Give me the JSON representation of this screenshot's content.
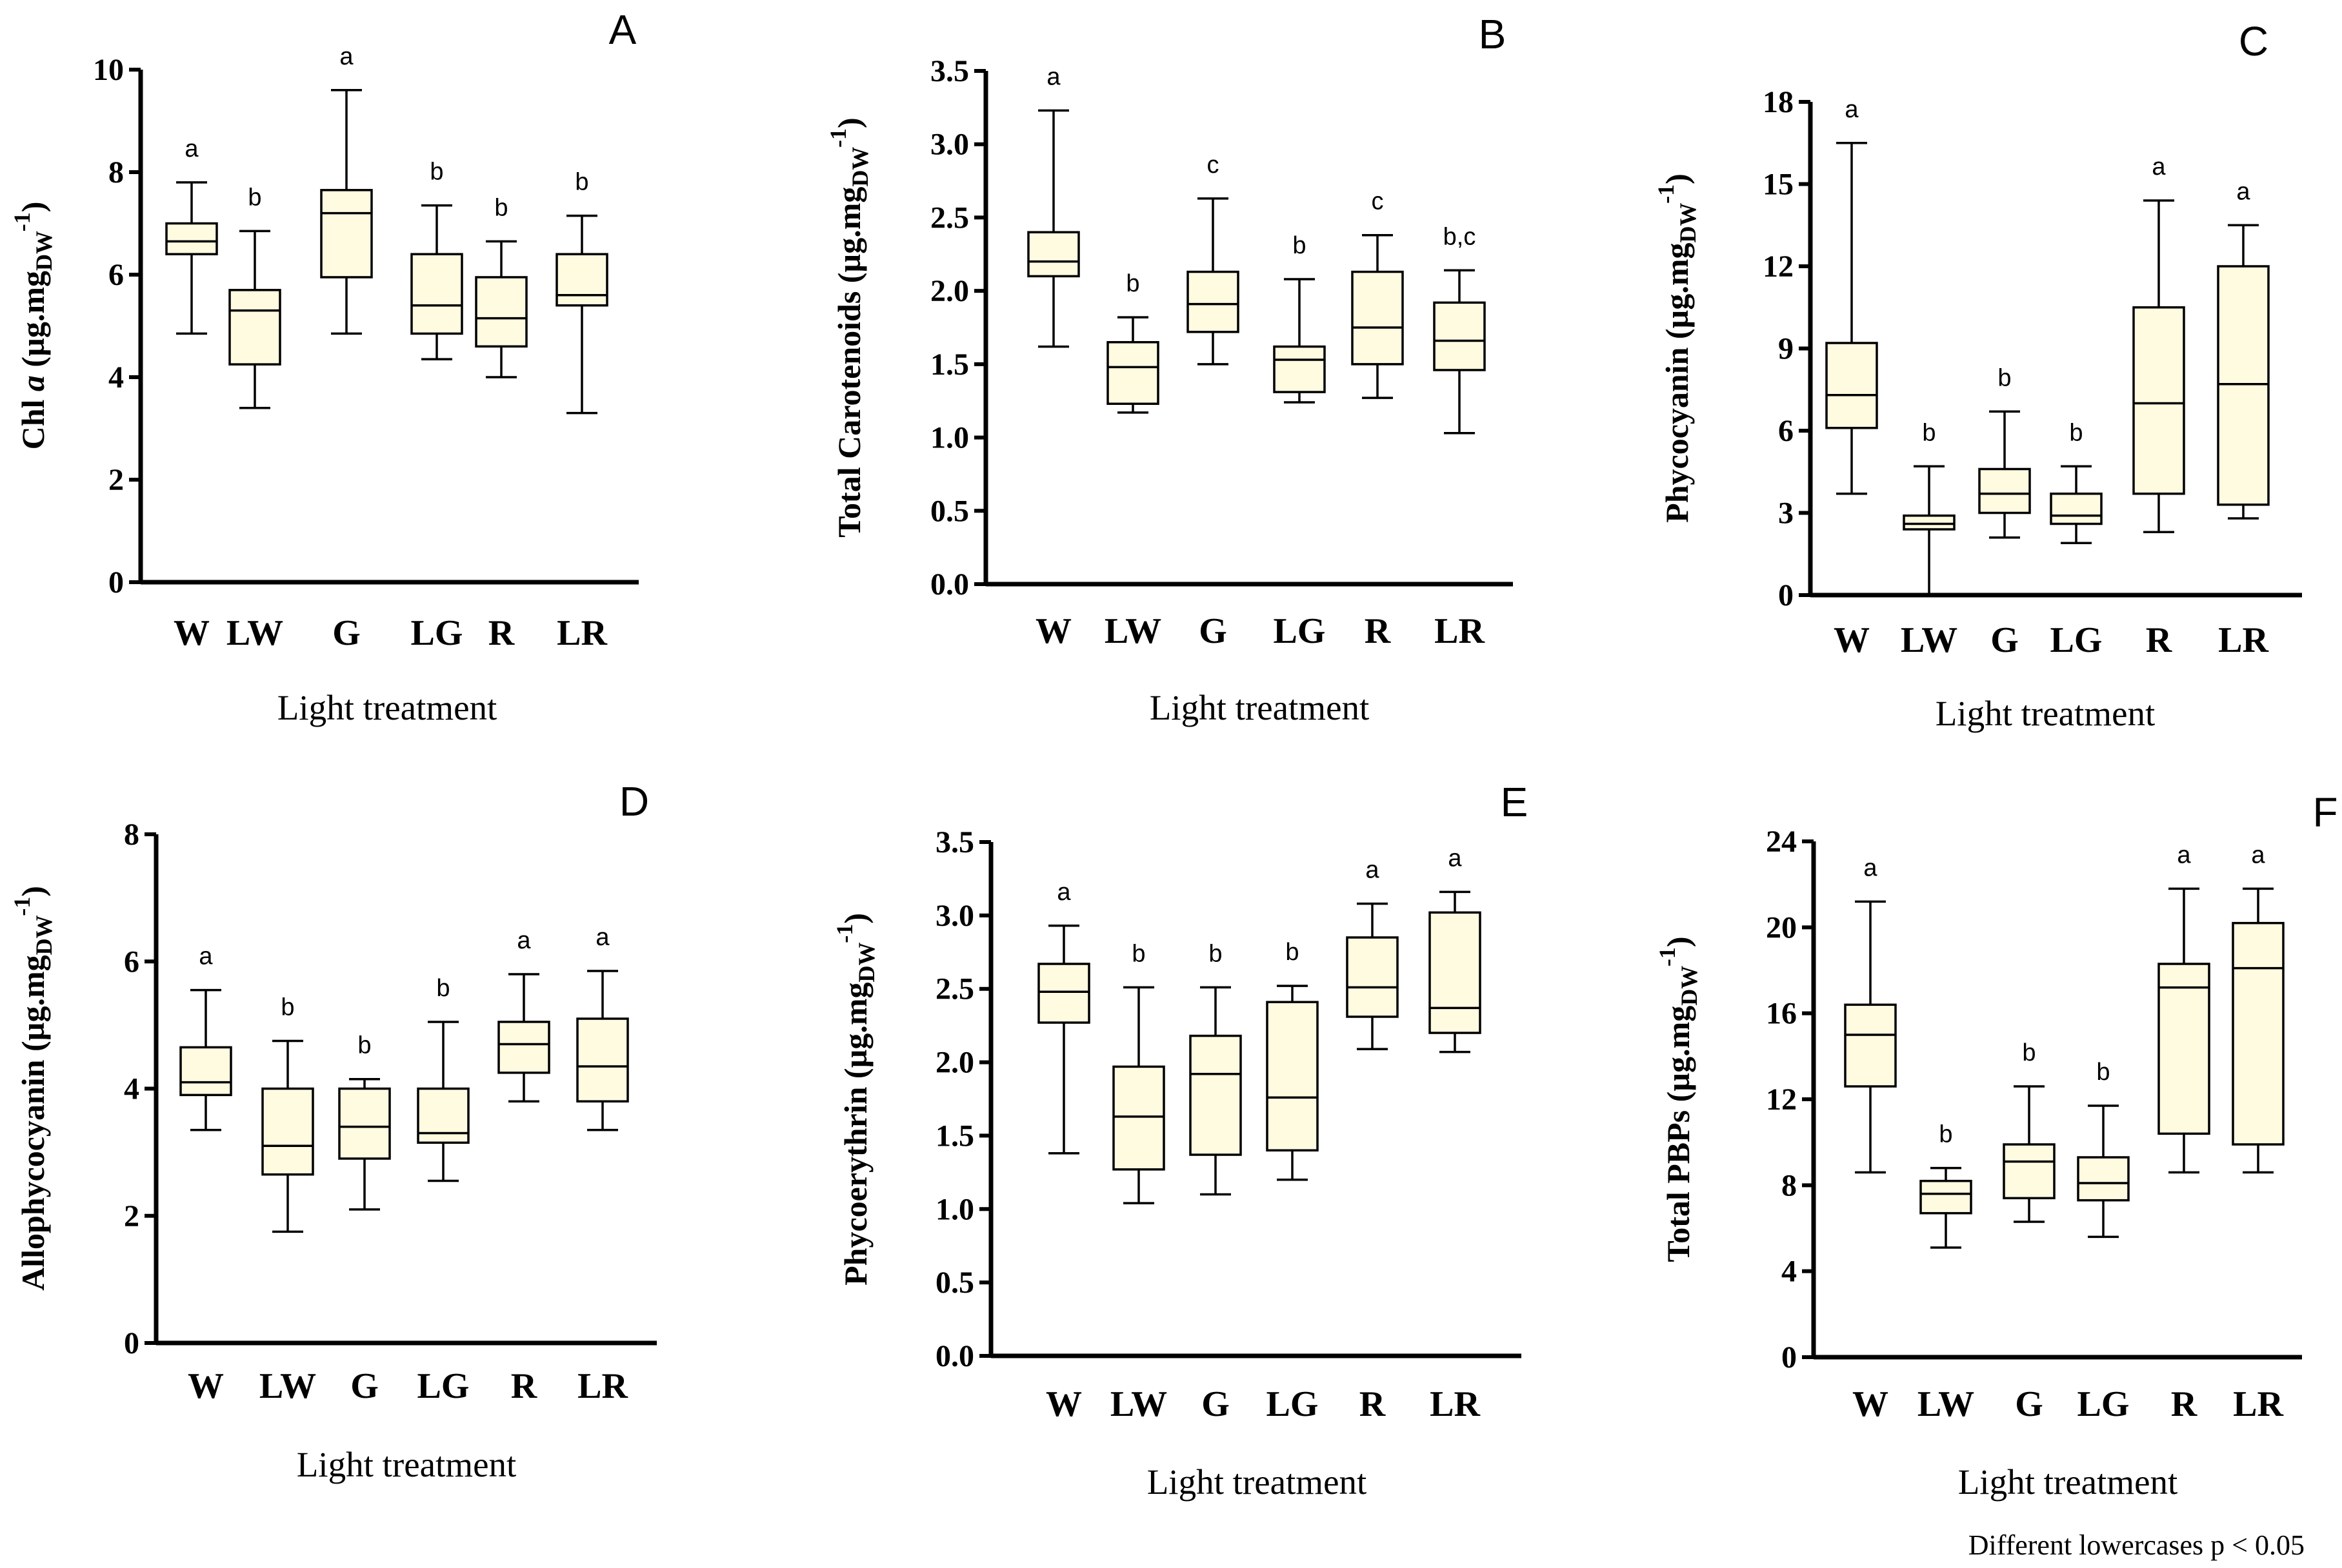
{
  "chart_data": [
    {
      "type": "box",
      "panel": "A",
      "ylabel_main": "Chl ",
      "ylabel_italic": "a",
      "ylabel_unit": " (µg.mg",
      "ylabel_sub": "DW",
      "ylabel_sup": "-1",
      "ylabel_close": ")",
      "xlabel": "Light treatment",
      "ylim": [
        0,
        10
      ],
      "yticks": [
        "0",
        "2",
        "4",
        "6",
        "8",
        "10"
      ],
      "tick_values": [
        0,
        2,
        4,
        6,
        8,
        10
      ],
      "categories": [
        "W",
        "LW",
        "G",
        "LG",
        "R",
        "LR"
      ],
      "boxes": [
        {
          "min": 4.85,
          "q1": 6.4,
          "median": 6.65,
          "q3": 7.0,
          "max": 7.8,
          "letter": "a"
        },
        {
          "min": 3.4,
          "q1": 4.25,
          "median": 5.3,
          "q3": 5.7,
          "max": 6.85,
          "letter": "b"
        },
        {
          "min": 4.85,
          "q1": 5.95,
          "median": 7.2,
          "q3": 7.65,
          "max": 9.6,
          "letter": "a"
        },
        {
          "min": 4.35,
          "q1": 4.85,
          "median": 5.4,
          "q3": 6.4,
          "max": 7.35,
          "letter": "b"
        },
        {
          "min": 4.0,
          "q1": 4.6,
          "median": 5.15,
          "q3": 5.95,
          "max": 6.65,
          "letter": "b"
        },
        {
          "min": 3.3,
          "q1": 5.4,
          "median": 5.6,
          "q3": 6.4,
          "max": 7.15,
          "letter": "b"
        }
      ]
    },
    {
      "type": "box",
      "panel": "B",
      "ylabel_main": "Total Carotenoids",
      "ylabel_italic": "",
      "ylabel_unit": " (µg.mg",
      "ylabel_sub": "DW",
      "ylabel_sup": "-1",
      "ylabel_close": ")",
      "xlabel": "Light treatment",
      "ylim": [
        0,
        3.5
      ],
      "yticks": [
        "0.0",
        "0.5",
        "1.0",
        "1.5",
        "2.0",
        "2.5",
        "3.0",
        "3.5"
      ],
      "tick_values": [
        0,
        0.5,
        1.0,
        1.5,
        2.0,
        2.5,
        3.0,
        3.5
      ],
      "categories": [
        "W",
        "LW",
        "G",
        "LG",
        "R",
        "LR"
      ],
      "boxes": [
        {
          "min": 1.62,
          "q1": 2.1,
          "median": 2.2,
          "q3": 2.4,
          "max": 3.23,
          "letter": "a"
        },
        {
          "min": 1.17,
          "q1": 1.23,
          "median": 1.48,
          "q3": 1.65,
          "max": 1.82,
          "letter": "b"
        },
        {
          "min": 1.5,
          "q1": 1.72,
          "median": 1.91,
          "q3": 2.13,
          "max": 2.63,
          "letter": "c"
        },
        {
          "min": 1.24,
          "q1": 1.31,
          "median": 1.53,
          "q3": 1.62,
          "max": 2.08,
          "letter": "b"
        },
        {
          "min": 1.27,
          "q1": 1.5,
          "median": 1.75,
          "q3": 2.13,
          "max": 2.38,
          "letter": "c"
        },
        {
          "min": 1.03,
          "q1": 1.46,
          "median": 1.66,
          "q3": 1.92,
          "max": 2.14,
          "letter": "b,c"
        }
      ]
    },
    {
      "type": "box",
      "panel": "C",
      "ylabel_main": "Phycocyanin",
      "ylabel_italic": "",
      "ylabel_unit": " (µg.mg",
      "ylabel_sub": "DW",
      "ylabel_sup": "-1",
      "ylabel_close": ")",
      "xlabel": "Light treatment",
      "ylim": [
        0,
        18
      ],
      "yticks": [
        "0",
        "3",
        "6",
        "9",
        "12",
        "15",
        "18"
      ],
      "tick_values": [
        0,
        3,
        6,
        9,
        12,
        15,
        18
      ],
      "categories": [
        "W",
        "LW",
        "G",
        "LG",
        "R",
        "LR"
      ],
      "boxes": [
        {
          "min": 3.7,
          "q1": 6.1,
          "median": 7.3,
          "q3": 9.2,
          "max": 16.5,
          "letter": "a"
        },
        {
          "min": 0.0,
          "q1": 2.4,
          "median": 2.6,
          "q3": 2.9,
          "max": 4.7,
          "letter": "b"
        },
        {
          "min": 2.1,
          "q1": 3.0,
          "median": 3.7,
          "q3": 4.6,
          "max": 6.7,
          "letter": "b"
        },
        {
          "min": 1.9,
          "q1": 2.6,
          "median": 2.9,
          "q3": 3.7,
          "max": 4.7,
          "letter": "b"
        },
        {
          "min": 2.3,
          "q1": 3.7,
          "median": 7.0,
          "q3": 10.5,
          "max": 14.4,
          "letter": "a"
        },
        {
          "min": 2.8,
          "q1": 3.3,
          "median": 7.7,
          "q3": 12.0,
          "max": 13.5,
          "letter": "a"
        }
      ]
    },
    {
      "type": "box",
      "panel": "D",
      "ylabel_main": "Allophycocyanin",
      "ylabel_italic": "",
      "ylabel_unit": " (µg.mg",
      "ylabel_sub": "DW",
      "ylabel_sup": "-1",
      "ylabel_close": ")",
      "xlabel": "Light treatment",
      "ylim": [
        0,
        8
      ],
      "yticks": [
        "0",
        "2",
        "4",
        "6",
        "8"
      ],
      "tick_values": [
        0,
        2,
        4,
        6,
        8
      ],
      "categories": [
        "W",
        "LW",
        "G",
        "LG",
        "R",
        "LR"
      ],
      "boxes": [
        {
          "min": 3.35,
          "q1": 3.9,
          "median": 4.1,
          "q3": 4.65,
          "max": 5.55,
          "letter": "a"
        },
        {
          "min": 1.75,
          "q1": 2.65,
          "median": 3.1,
          "q3": 4.0,
          "max": 4.75,
          "letter": "b"
        },
        {
          "min": 2.1,
          "q1": 2.9,
          "median": 3.4,
          "q3": 4.0,
          "max": 4.15,
          "letter": "b"
        },
        {
          "min": 2.55,
          "q1": 3.15,
          "median": 3.3,
          "q3": 4.0,
          "max": 5.05,
          "letter": "b"
        },
        {
          "min": 3.8,
          "q1": 4.25,
          "median": 4.7,
          "q3": 5.05,
          "max": 5.8,
          "letter": "a"
        },
        {
          "min": 3.35,
          "q1": 3.8,
          "median": 4.35,
          "q3": 5.1,
          "max": 5.85,
          "letter": "a"
        }
      ]
    },
    {
      "type": "box",
      "panel": "E",
      "ylabel_main": "Phycoerythrin",
      "ylabel_italic": "",
      "ylabel_unit": " (µg.mg",
      "ylabel_sub": "DW",
      "ylabel_sup": "-1",
      "ylabel_close": ")",
      "xlabel": "Light treatment",
      "ylim": [
        0,
        3.5
      ],
      "yticks": [
        "0.0",
        "0.5",
        "1.0",
        "1.5",
        "2.0",
        "2.5",
        "3.0",
        "3.5"
      ],
      "tick_values": [
        0,
        0.5,
        1.0,
        1.5,
        2.0,
        2.5,
        3.0,
        3.5
      ],
      "categories": [
        "W",
        "LW",
        "G",
        "LG",
        "R",
        "LR"
      ],
      "boxes": [
        {
          "min": 1.38,
          "q1": 2.27,
          "median": 2.48,
          "q3": 2.67,
          "max": 2.93,
          "letter": "a"
        },
        {
          "min": 1.04,
          "q1": 1.27,
          "median": 1.63,
          "q3": 1.97,
          "max": 2.51,
          "letter": "b"
        },
        {
          "min": 1.1,
          "q1": 1.37,
          "median": 1.92,
          "q3": 2.18,
          "max": 2.51,
          "letter": "b"
        },
        {
          "min": 1.2,
          "q1": 1.4,
          "median": 1.76,
          "q3": 2.41,
          "max": 2.52,
          "letter": "b"
        },
        {
          "min": 2.09,
          "q1": 2.31,
          "median": 2.51,
          "q3": 2.85,
          "max": 3.08,
          "letter": "a"
        },
        {
          "min": 2.07,
          "q1": 2.2,
          "median": 2.37,
          "q3": 3.02,
          "max": 3.16,
          "letter": "a"
        }
      ]
    },
    {
      "type": "box",
      "panel": "F",
      "ylabel_main": "Total PBPs",
      "ylabel_italic": "",
      "ylabel_unit": " (µg.mg",
      "ylabel_sub": "DW",
      "ylabel_sup": "-1",
      "ylabel_close": ")",
      "xlabel": "Light treatment",
      "ylim": [
        0,
        24
      ],
      "yticks": [
        "0",
        "4",
        "8",
        "12",
        "16",
        "20",
        "24"
      ],
      "tick_values": [
        0,
        4,
        8,
        12,
        16,
        20,
        24
      ],
      "categories": [
        "W",
        "LW",
        "G",
        "LG",
        "R",
        "LR"
      ],
      "boxes": [
        {
          "min": 8.6,
          "q1": 12.6,
          "median": 15.0,
          "q3": 16.4,
          "max": 21.2,
          "letter": "a"
        },
        {
          "min": 5.1,
          "q1": 6.7,
          "median": 7.6,
          "q3": 8.2,
          "max": 8.8,
          "letter": "b"
        },
        {
          "min": 6.3,
          "q1": 7.4,
          "median": 9.1,
          "q3": 9.9,
          "max": 12.6,
          "letter": "b"
        },
        {
          "min": 5.6,
          "q1": 7.3,
          "median": 8.1,
          "q3": 9.3,
          "max": 11.7,
          "letter": "b"
        },
        {
          "min": 8.6,
          "q1": 10.4,
          "median": 17.2,
          "q3": 18.3,
          "max": 21.8,
          "letter": "a"
        },
        {
          "min": 8.6,
          "q1": 9.9,
          "median": 18.1,
          "q3": 20.2,
          "max": 21.8,
          "letter": "a"
        }
      ]
    }
  ],
  "footnote": "Different lowercases p < 0.05"
}
